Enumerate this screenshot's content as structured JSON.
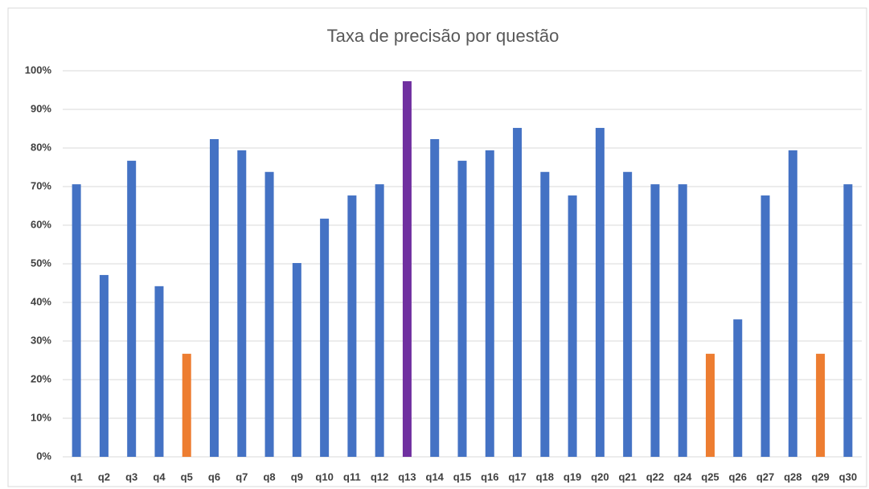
{
  "chart_data": {
    "type": "bar",
    "title": "Taxa de precisão por questão",
    "categories": [
      "q1",
      "q2",
      "q3",
      "q4",
      "q5",
      "q6",
      "q7",
      "q8",
      "q9",
      "q10",
      "q11",
      "q12",
      "q13",
      "q14",
      "q15",
      "q16",
      "q17",
      "q18",
      "q19",
      "q20",
      "q21",
      "q22",
      "q24",
      "q25",
      "q26",
      "q27",
      "q28",
      "q29",
      "q30"
    ],
    "values": [
      70.6,
      47.1,
      76.7,
      44.2,
      26.7,
      82.3,
      79.4,
      73.8,
      50.2,
      61.7,
      67.7,
      70.6,
      97.3,
      82.3,
      76.7,
      79.4,
      85.2,
      73.8,
      67.7,
      85.2,
      73.8,
      70.6,
      70.6,
      26.7,
      35.6,
      67.7,
      79.4,
      26.7,
      70.6
    ],
    "colors": [
      "#4472c4",
      "#4472c4",
      "#4472c4",
      "#4472c4",
      "#ed7d31",
      "#4472c4",
      "#4472c4",
      "#4472c4",
      "#4472c4",
      "#4472c4",
      "#4472c4",
      "#4472c4",
      "#7030a0",
      "#4472c4",
      "#4472c4",
      "#4472c4",
      "#4472c4",
      "#4472c4",
      "#4472c4",
      "#4472c4",
      "#4472c4",
      "#4472c4",
      "#4472c4",
      "#ed7d31",
      "#4472c4",
      "#4472c4",
      "#4472c4",
      "#ed7d31",
      "#4472c4"
    ],
    "ylim": [
      0,
      100
    ],
    "yticks": [
      {
        "value": 0,
        "label": "0%"
      },
      {
        "value": 10,
        "label": "10%"
      },
      {
        "value": 20,
        "label": "20%"
      },
      {
        "value": 30,
        "label": "30%"
      },
      {
        "value": 40,
        "label": "40%"
      },
      {
        "value": 50,
        "label": "50%"
      },
      {
        "value": 60,
        "label": "60%"
      },
      {
        "value": 70,
        "label": "70%"
      },
      {
        "value": 80,
        "label": "80%"
      },
      {
        "value": 90,
        "label": "90%"
      },
      {
        "value": 100,
        "label": "100%"
      }
    ],
    "grid": true
  }
}
